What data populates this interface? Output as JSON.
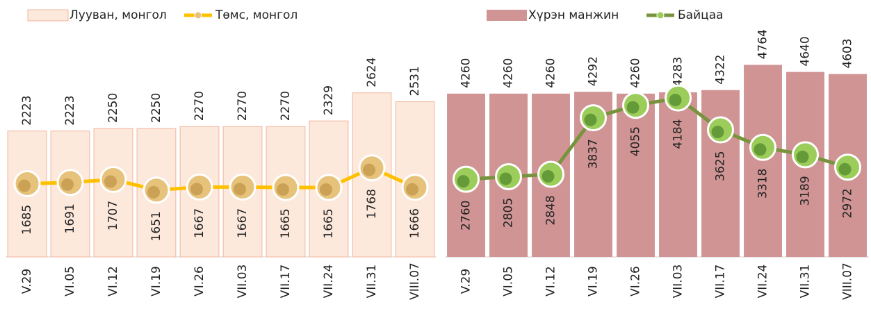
{
  "chart_data": [
    {
      "type": "combo",
      "categories": [
        "V.29",
        "VI.05",
        "VI.12",
        "VI.19",
        "VI.26",
        "VII.03",
        "VII.17",
        "VII.24",
        "VII.31",
        "VIII.07"
      ],
      "series": [
        {
          "name": "Лууван, монгол",
          "type": "bar",
          "color": "#fde9dc",
          "values": [
            2223,
            2223,
            2250,
            2250,
            2270,
            2270,
            2270,
            2329,
            2624,
            2531
          ]
        },
        {
          "name": "Төмс, монгол",
          "type": "line",
          "axis": "y2",
          "color": "#ffc000",
          "values": [
            1685,
            1691,
            1707,
            1651,
            1667,
            1667,
            1665,
            1665,
            1768,
            1666
          ]
        }
      ],
      "ylim": [
        900,
        3600
      ],
      "y2lim": [
        1300,
        2650
      ]
    },
    {
      "type": "combo",
      "categories": [
        "V.29",
        "VI.05",
        "VI.12",
        "VI.19",
        "VI.26",
        "VII.03",
        "VII.17",
        "VII.24",
        "VII.31",
        "VIII.07"
      ],
      "series": [
        {
          "name": "Хүрэн манжин",
          "type": "bar",
          "color": "#d09494",
          "values": [
            4260,
            4260,
            4260,
            4292,
            4260,
            4283,
            4322,
            4764,
            4640,
            4603
          ]
        },
        {
          "name": "Байцаа",
          "type": "line",
          "color": "#77933c",
          "values": [
            2760,
            2805,
            2848,
            3837,
            4055,
            4184,
            3625,
            3318,
            3189,
            2972
          ]
        }
      ],
      "ylim": [
        1400,
        5900
      ]
    }
  ]
}
